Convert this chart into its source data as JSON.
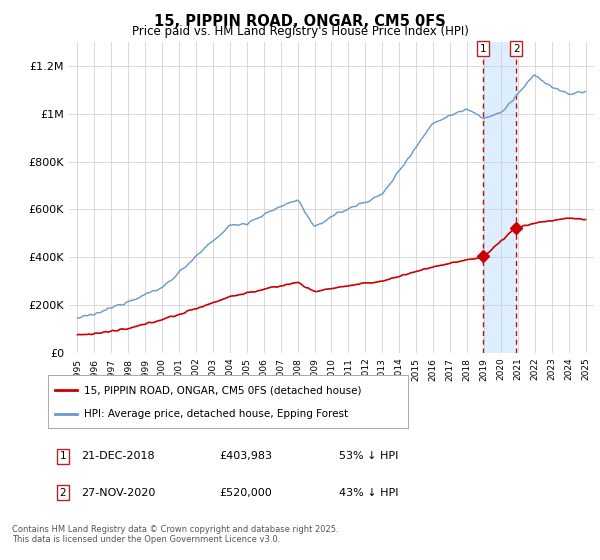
{
  "title": "15, PIPPIN ROAD, ONGAR, CM5 0FS",
  "subtitle": "Price paid vs. HM Land Registry's House Price Index (HPI)",
  "footnote": "Contains HM Land Registry data © Crown copyright and database right 2025.\nThis data is licensed under the Open Government Licence v3.0.",
  "legend_line1": "15, PIPPIN ROAD, ONGAR, CM5 0FS (detached house)",
  "legend_line2": "HPI: Average price, detached house, Epping Forest",
  "transactions": [
    {
      "label": "1",
      "date": "21-DEC-2018",
      "price": "£403,983",
      "hpi": "53% ↓ HPI"
    },
    {
      "label": "2",
      "date": "27-NOV-2020",
      "price": "£520,000",
      "hpi": "43% ↓ HPI"
    }
  ],
  "marker1_x": 2018.97,
  "marker2_x": 2020.91,
  "marker1_y": 403983,
  "marker2_y": 520000,
  "vline1_x": 2018.97,
  "vline2_x": 2020.91,
  "ylim": [
    0,
    1300000
  ],
  "xlim": [
    1994.5,
    2025.5
  ],
  "yticks": [
    0,
    200000,
    400000,
    600000,
    800000,
    1000000,
    1200000
  ],
  "ytick_labels": [
    "£0",
    "£200K",
    "£400K",
    "£600K",
    "£800K",
    "£1M",
    "£1.2M"
  ],
  "red_color": "#cc0000",
  "blue_color": "#6699cc",
  "shade_color": "#ddeeff",
  "grid_color": "#cccccc",
  "background": "#ffffff"
}
